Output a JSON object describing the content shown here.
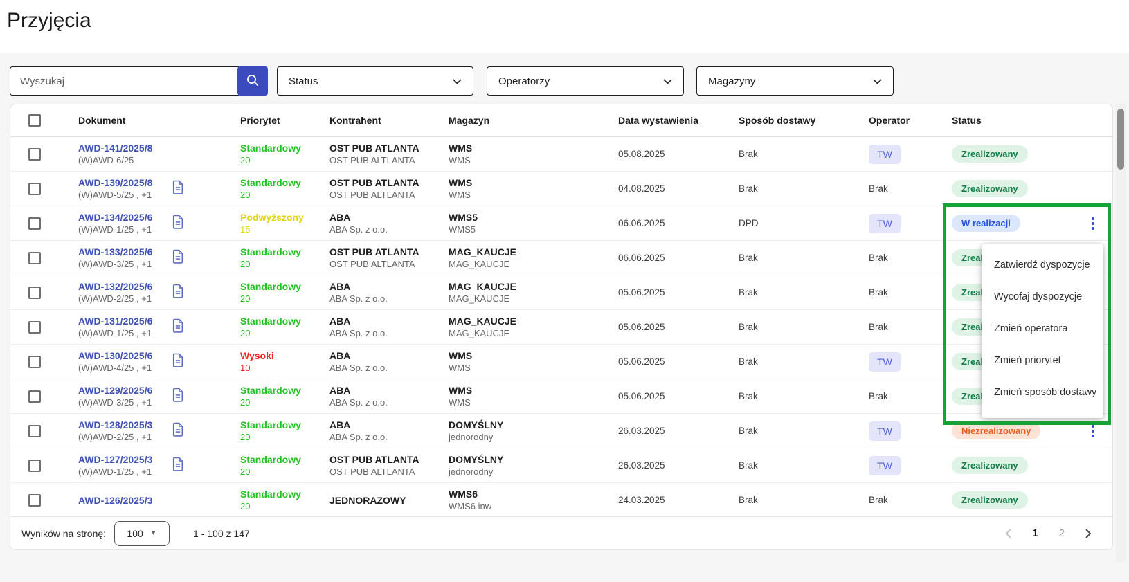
{
  "page": {
    "title": "Przyjęcia"
  },
  "filters": {
    "search": {
      "placeholder": "Wyszukaj"
    },
    "status": {
      "label": "Status"
    },
    "operators": {
      "label": "Operatorzy"
    },
    "warehouses": {
      "label": "Magazyny"
    }
  },
  "table": {
    "columns": [
      "Dokument",
      "Priorytet",
      "Kontrahent",
      "Magazyn",
      "Data wystawienia",
      "Sposób dostawy",
      "Operator",
      "Status"
    ],
    "rows": [
      {
        "doc": "AWD-141/2025/8",
        "doc_sub": "(W)AWD-6/25",
        "has_attachment": false,
        "priority": "Standardowy",
        "priority_value": "20",
        "priority_color": "green",
        "contractor": "OST PUB ATLANTA",
        "contractor_sub": "OST PUB ALTLANTA",
        "warehouse": "WMS",
        "warehouse_sub": "WMS",
        "date": "05.08.2025",
        "delivery": "Brak",
        "operator": "TW",
        "operator_badge": true,
        "status": "Zrealizowany",
        "status_type": "done",
        "has_menu_trigger": false
      },
      {
        "doc": "AWD-139/2025/8",
        "doc_sub": "(W)AWD-5/25 , +1",
        "has_attachment": true,
        "priority": "Standardowy",
        "priority_value": "20",
        "priority_color": "green",
        "contractor": "OST PUB ATLANTA",
        "contractor_sub": "OST PUB ALTLANTA",
        "warehouse": "WMS",
        "warehouse_sub": "WMS",
        "date": "04.08.2025",
        "delivery": "Brak",
        "operator": "Brak",
        "operator_badge": false,
        "status": "Zrealizowany",
        "status_type": "done",
        "has_menu_trigger": false
      },
      {
        "doc": "AWD-134/2025/6",
        "doc_sub": "(W)AWD-1/25 , +1",
        "has_attachment": true,
        "priority": "Podwyższony",
        "priority_value": "15",
        "priority_color": "yellow",
        "contractor": "ABA",
        "contractor_sub": "ABA Sp. z o.o.",
        "warehouse": "WMS5",
        "warehouse_sub": "WMS5",
        "date": "06.06.2025",
        "delivery": "DPD",
        "operator": "TW",
        "operator_badge": true,
        "status": "W realizacji",
        "status_type": "inprogress",
        "has_menu_trigger": true
      },
      {
        "doc": "AWD-133/2025/6",
        "doc_sub": "(W)AWD-3/25 , +1",
        "has_attachment": true,
        "priority": "Standardowy",
        "priority_value": "20",
        "priority_color": "green",
        "contractor": "OST PUB ATLANTA",
        "contractor_sub": "OST PUB ALTLANTA",
        "warehouse": "MAG_KAUCJE",
        "warehouse_sub": "MAG_KAUCJE",
        "date": "06.06.2025",
        "delivery": "Brak",
        "operator": "Brak",
        "operator_badge": false,
        "status": "Zrealizowany",
        "status_type": "done",
        "has_menu_trigger": false
      },
      {
        "doc": "AWD-132/2025/6",
        "doc_sub": "(W)AWD-2/25 , +1",
        "has_attachment": true,
        "priority": "Standardowy",
        "priority_value": "20",
        "priority_color": "green",
        "contractor": "ABA",
        "contractor_sub": "ABA Sp. z o.o.",
        "warehouse": "MAG_KAUCJE",
        "warehouse_sub": "MAG_KAUCJE",
        "date": "05.06.2025",
        "delivery": "Brak",
        "operator": "Brak",
        "operator_badge": false,
        "status": "Zrealizowany",
        "status_type": "done",
        "has_menu_trigger": false
      },
      {
        "doc": "AWD-131/2025/6",
        "doc_sub": "(W)AWD-1/25 , +1",
        "has_attachment": true,
        "priority": "Standardowy",
        "priority_value": "20",
        "priority_color": "green",
        "contractor": "ABA",
        "contractor_sub": "ABA Sp. z o.o.",
        "warehouse": "MAG_KAUCJE",
        "warehouse_sub": "MAG_KAUCJE",
        "date": "05.06.2025",
        "delivery": "Brak",
        "operator": "Brak",
        "operator_badge": false,
        "status": "Zrealizowany",
        "status_type": "done",
        "has_menu_trigger": false
      },
      {
        "doc": "AWD-130/2025/6",
        "doc_sub": "(W)AWD-4/25 , +1",
        "has_attachment": true,
        "priority": "Wysoki",
        "priority_value": "10",
        "priority_color": "red",
        "contractor": "ABA",
        "contractor_sub": "ABA Sp. z o.o.",
        "warehouse": "WMS",
        "warehouse_sub": "WMS",
        "date": "05.06.2025",
        "delivery": "Brak",
        "operator": "TW",
        "operator_badge": true,
        "status": "Zrealizowany",
        "status_type": "done",
        "has_menu_trigger": false
      },
      {
        "doc": "AWD-129/2025/6",
        "doc_sub": "(W)AWD-3/25 , +1",
        "has_attachment": true,
        "priority": "Standardowy",
        "priority_value": "20",
        "priority_color": "green",
        "contractor": "ABA",
        "contractor_sub": "ABA Sp. z o.o.",
        "warehouse": "WMS",
        "warehouse_sub": "WMS",
        "date": "05.06.2025",
        "delivery": "Brak",
        "operator": "Brak",
        "operator_badge": false,
        "status": "Zrealizowany",
        "status_type": "done",
        "has_menu_trigger": false
      },
      {
        "doc": "AWD-128/2025/3",
        "doc_sub": "(W)AWD-2/25 , +1",
        "has_attachment": true,
        "priority": "Standardowy",
        "priority_value": "20",
        "priority_color": "green",
        "contractor": "ABA",
        "contractor_sub": "ABA Sp. z o.o.",
        "warehouse": "DOMYŚLNY",
        "warehouse_sub": "jednorodny",
        "date": "26.03.2025",
        "delivery": "Brak",
        "operator": "TW",
        "operator_badge": true,
        "status": "Niezrealizowany",
        "status_type": "notdone",
        "has_menu_trigger": true
      },
      {
        "doc": "AWD-127/2025/3",
        "doc_sub": "(W)AWD-1/25 , +1",
        "has_attachment": true,
        "priority": "Standardowy",
        "priority_value": "20",
        "priority_color": "green",
        "contractor": "OST PUB ATLANTA",
        "contractor_sub": "OST PUB ALTLANTA",
        "warehouse": "DOMYŚLNY",
        "warehouse_sub": "jednorodny",
        "date": "26.03.2025",
        "delivery": "Brak",
        "operator": "TW",
        "operator_badge": true,
        "status": "Zrealizowany",
        "status_type": "done",
        "has_menu_trigger": false
      },
      {
        "doc": "AWD-126/2025/3",
        "doc_sub": "",
        "has_attachment": false,
        "priority": "Standardowy",
        "priority_value": "20",
        "priority_color": "green",
        "contractor": "JEDNORAZOWY",
        "contractor_sub": "",
        "warehouse": "WMS6",
        "warehouse_sub": "WMS6 inw",
        "date": "24.03.2025",
        "delivery": "Brak",
        "operator": "Brak",
        "operator_badge": false,
        "status": "Zrealizowany",
        "status_type": "done",
        "has_menu_trigger": false
      }
    ]
  },
  "context_menu": {
    "items": [
      "Zatwierdź dyspozycje",
      "Wycofaj dyspozycje",
      "Zmień operatora",
      "Zmień priorytet",
      "Zmień sposób dostawy"
    ]
  },
  "footer": {
    "per_page_label": "Wyników na stronę:",
    "per_page_value": "100",
    "range_text": "1 - 100 z 147",
    "pagination": {
      "pages": [
        "1",
        "2"
      ],
      "current": "1"
    }
  },
  "colors": {
    "accent_indigo": "#3f51b5",
    "search_button": "#3b4abc",
    "priority_green": "#1fc31f",
    "priority_yellow": "#e2d407",
    "priority_red": "#f71f1f",
    "operator_badge_bg": "#e4e4fb",
    "operator_badge_text": "#5062d6",
    "status_done_bg": "#def3e6",
    "status_done_text": "#117a45",
    "status_inprogress_bg": "#dce6fc",
    "status_inprogress_text": "#2a52dd",
    "status_notdone_bg": "#fbe3d5",
    "status_notdone_text": "#e95c20",
    "annotation_green": "#16a336"
  }
}
